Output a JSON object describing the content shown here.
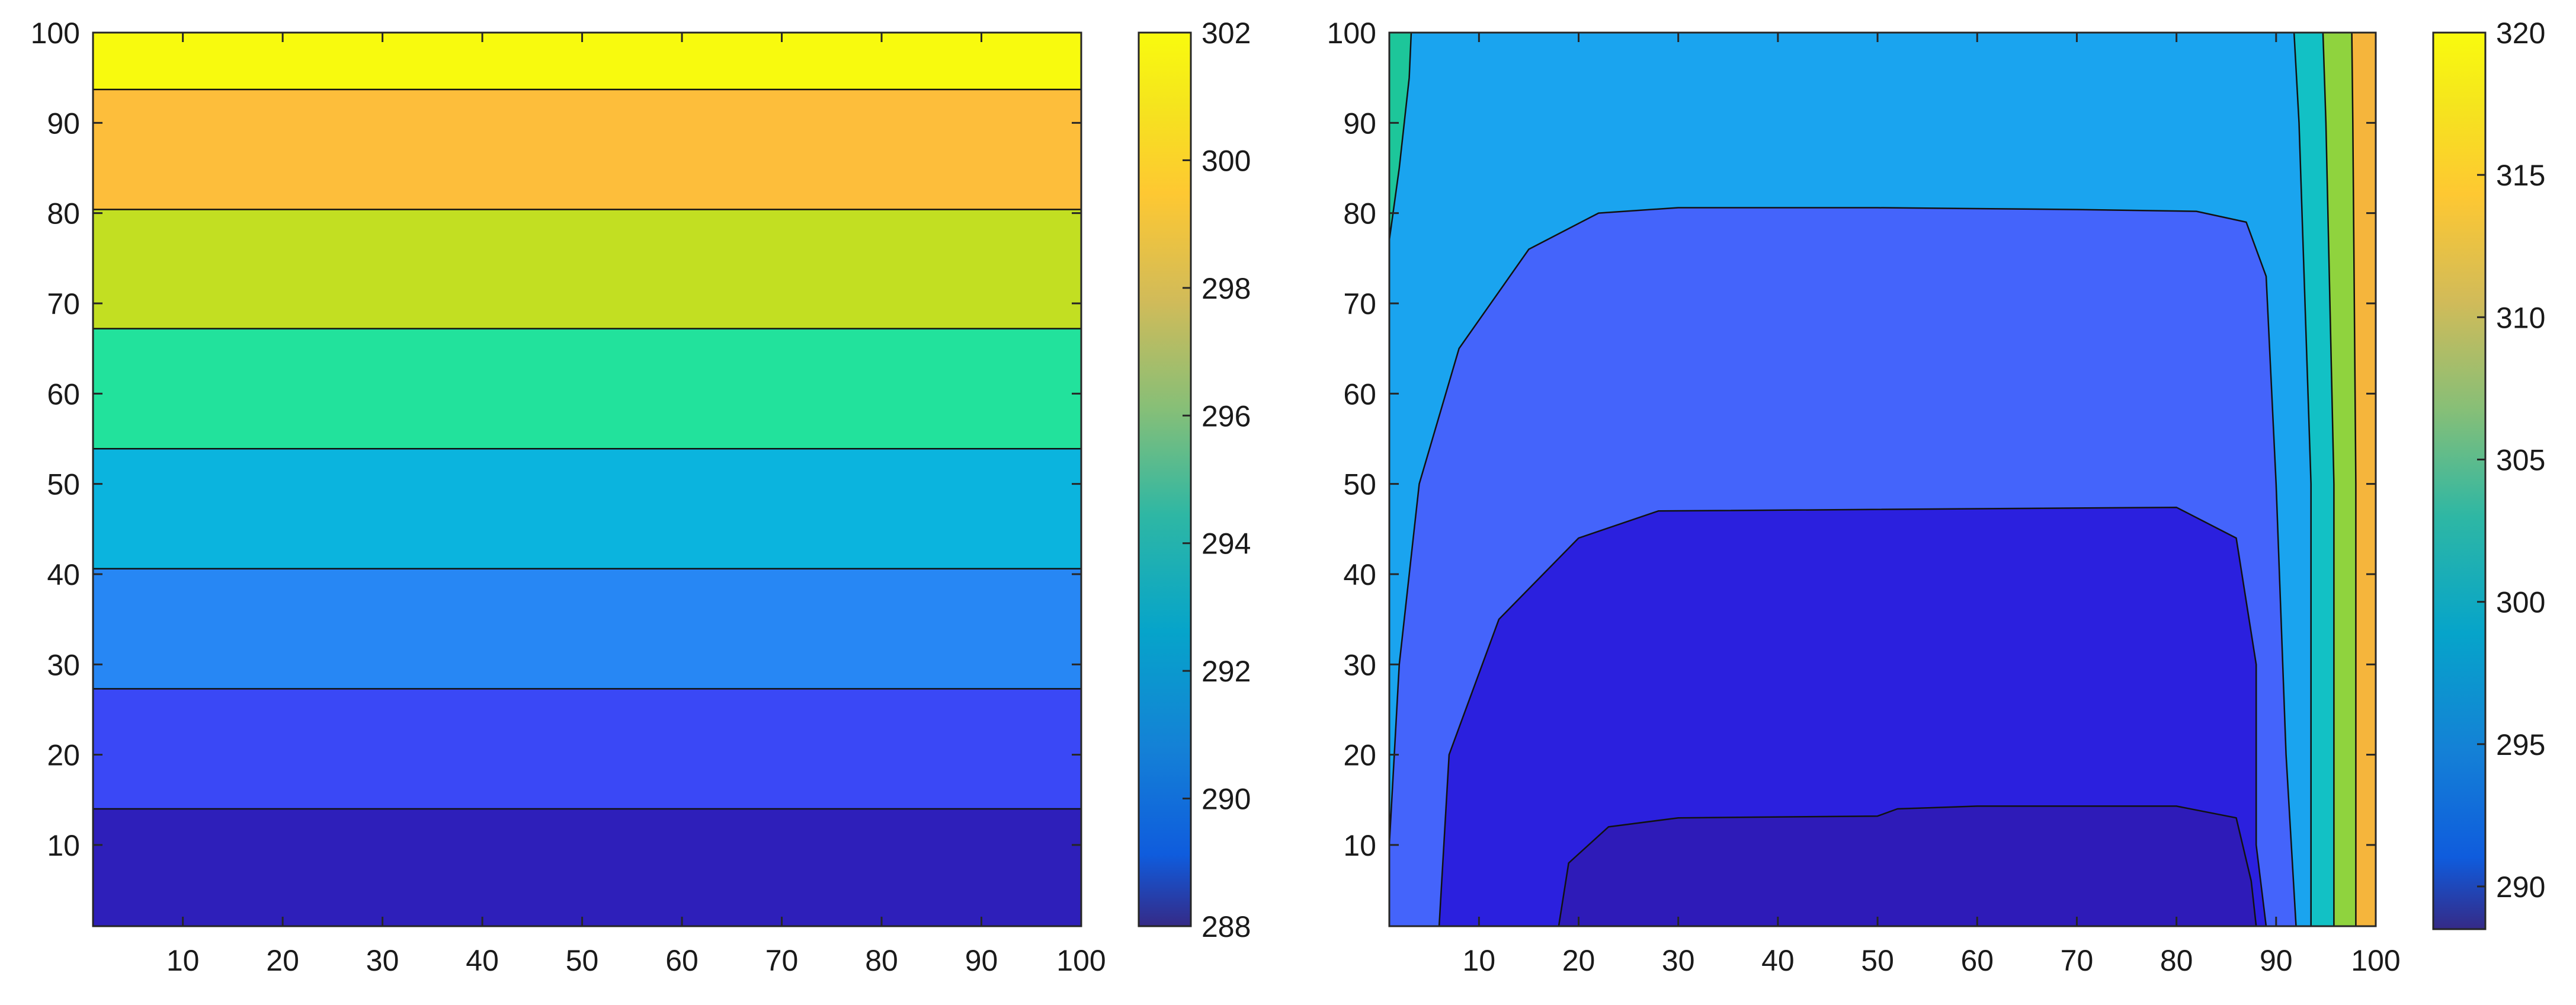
{
  "chart_data": [
    {
      "type": "contour",
      "xlim": [
        1,
        100
      ],
      "ylim": [
        1,
        100
      ],
      "xticks": [
        10,
        20,
        30,
        40,
        50,
        60,
        70,
        80,
        90,
        100
      ],
      "yticks": [
        10,
        20,
        30,
        40,
        50,
        60,
        70,
        80,
        90,
        100
      ],
      "colorbar": {
        "colormap": "parula",
        "range": [
          288,
          302
        ],
        "ticks": [
          288,
          290,
          292,
          294,
          296,
          298,
          300,
          302
        ]
      },
      "bands": [
        {
          "y_from": 1,
          "y_to": 14,
          "color": "#2e1fba"
        },
        {
          "y_from": 14,
          "y_to": 27.3,
          "color": "#3a48f6"
        },
        {
          "y_from": 27.3,
          "y_to": 40.6,
          "color": "#2787f4"
        },
        {
          "y_from": 40.6,
          "y_to": 53.9,
          "color": "#0bb4de"
        },
        {
          "y_from": 53.9,
          "y_to": 67.2,
          "color": "#22e29c"
        },
        {
          "y_from": 67.2,
          "y_to": 80.4,
          "color": "#c2df22"
        },
        {
          "y_from": 80.4,
          "y_to": 93.7,
          "color": "#fdbe3b"
        },
        {
          "y_from": 93.7,
          "y_to": 100,
          "color": "#f8fa0e"
        }
      ],
      "grid": false
    },
    {
      "type": "contour",
      "xlim": [
        1,
        100
      ],
      "ylim": [
        1,
        100
      ],
      "xticks": [
        10,
        20,
        30,
        40,
        50,
        60,
        70,
        80,
        90,
        100
      ],
      "yticks": [
        10,
        20,
        30,
        40,
        50,
        60,
        70,
        80,
        90,
        100
      ],
      "colorbar": {
        "colormap": "parula",
        "range": [
          288.5,
          320
        ],
        "ticks": [
          290,
          295,
          300,
          305,
          310,
          315,
          320
        ]
      },
      "region_colors": {
        "outer": "#1aa4ef",
        "edge_left": "#1dc69a",
        "mid": "#4464fb",
        "inner": "#2b20de",
        "core": "#2e1bb8",
        "edge_right_1": "#12c1c5",
        "edge_right_2": "#8fd33e",
        "edge_right_3": "#f5b53c"
      },
      "contours": {
        "mid": {
          "top_y": 80.4,
          "top_curve": [
            [
              22,
              80
            ],
            [
              30,
              80.6
            ],
            [
              50,
              80.6
            ],
            [
              70,
              80.4
            ],
            [
              82,
              80.2
            ],
            [
              87,
              79
            ]
          ],
          "left_edge": [
            [
              1,
              10
            ],
            [
              2,
              30
            ],
            [
              4,
              50
            ],
            [
              8,
              65
            ],
            [
              15,
              76
            ],
            [
              22,
              80
            ]
          ],
          "right_edge": [
            [
              87,
              79
            ],
            [
              89,
              73
            ],
            [
              90,
              50
            ],
            [
              91,
              20
            ],
            [
              92,
              1
            ]
          ]
        },
        "inner": {
          "top_y": 47.4,
          "left_edge": [
            [
              6,
              1
            ],
            [
              7,
              20
            ],
            [
              12,
              35
            ],
            [
              20,
              44
            ],
            [
              28,
              47
            ]
          ],
          "right_edge": [
            [
              80,
              47.4
            ],
            [
              86,
              44
            ],
            [
              88,
              30
            ],
            [
              88,
              10
            ],
            [
              89,
              1
            ]
          ]
        },
        "core": {
          "top_y": 14,
          "top_curve": [
            [
              18,
              1
            ],
            [
              19,
              8
            ],
            [
              23,
              12
            ],
            [
              30,
              13
            ],
            [
              50,
              13.2
            ],
            [
              52,
              14
            ],
            [
              60,
              14.3
            ],
            [
              80,
              14.3
            ],
            [
              86,
              13
            ],
            [
              87.5,
              6
            ],
            [
              88,
              1
            ]
          ]
        },
        "edge_right_1": [
          [
            93.5,
            1
          ],
          [
            93.5,
            50
          ],
          [
            92.3,
            90
          ],
          [
            91.8,
            100
          ]
        ],
        "edge_right_2": [
          [
            95.8,
            1
          ],
          [
            95.8,
            50
          ],
          [
            95,
            90
          ],
          [
            94.7,
            100
          ]
        ],
        "edge_right_3": [
          [
            98,
            1
          ],
          [
            98,
            50
          ],
          [
            97.7,
            90
          ],
          [
            97.6,
            100
          ]
        ],
        "edge_left": [
          [
            1,
            77
          ],
          [
            2,
            85
          ],
          [
            3,
            95
          ],
          [
            3.2,
            100
          ]
        ]
      },
      "grid": false
    }
  ]
}
